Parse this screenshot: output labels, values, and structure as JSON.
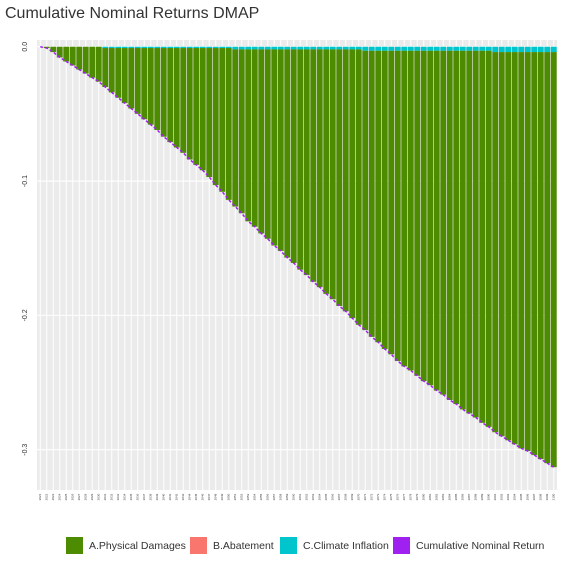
{
  "chart_data": {
    "type": "bar",
    "stacked": true,
    "title": "Cumulative Nominal Returns DMAP",
    "categories": [
      "2021",
      "2022",
      "2023",
      "2024",
      "2025",
      "2026",
      "2027",
      "2028",
      "2029",
      "2030",
      "2031",
      "2032",
      "2033",
      "2034",
      "2035",
      "2036",
      "2037",
      "2038",
      "2039",
      "2040",
      "2041",
      "2042",
      "2043",
      "2044",
      "2045",
      "2046",
      "2047",
      "2048",
      "2049",
      "2050",
      "2051",
      "2052",
      "2053",
      "2054",
      "2055",
      "2056",
      "2057",
      "2058",
      "2059",
      "2060",
      "2061",
      "2062",
      "2063",
      "2064",
      "2065",
      "2066",
      "2067",
      "2068",
      "2069",
      "2070",
      "2071",
      "2072",
      "2073",
      "2074",
      "2075",
      "2076",
      "2077",
      "2078",
      "2079",
      "2080",
      "2081",
      "2082",
      "2083",
      "2084",
      "2085",
      "2086",
      "2087",
      "2088",
      "2089",
      "2090",
      "2091",
      "2092",
      "2093",
      "2094",
      "2095",
      "2096",
      "2097",
      "2098",
      "2099",
      "2100"
    ],
    "series": [
      {
        "name": "A.Physical Damages",
        "color": "#4d8b00",
        "values": [
          0,
          -0.001,
          -0.004,
          -0.008,
          -0.011,
          -0.014,
          -0.017,
          -0.02,
          -0.023,
          -0.026,
          -0.029,
          -0.033,
          -0.037,
          -0.041,
          -0.045,
          -0.049,
          -0.053,
          -0.057,
          -0.061,
          -0.066,
          -0.07,
          -0.074,
          -0.078,
          -0.083,
          -0.087,
          -0.091,
          -0.096,
          -0.102,
          -0.107,
          -0.113,
          -0.117,
          -0.122,
          -0.128,
          -0.132,
          -0.137,
          -0.141,
          -0.146,
          -0.15,
          -0.155,
          -0.159,
          -0.164,
          -0.168,
          -0.173,
          -0.177,
          -0.182,
          -0.186,
          -0.191,
          -0.195,
          -0.2,
          -0.205,
          -0.208,
          -0.213,
          -0.217,
          -0.222,
          -0.226,
          -0.231,
          -0.235,
          -0.238,
          -0.242,
          -0.246,
          -0.249,
          -0.253,
          -0.256,
          -0.26,
          -0.263,
          -0.267,
          -0.27,
          -0.273,
          -0.277,
          -0.28,
          -0.283,
          -0.286,
          -0.289,
          -0.292,
          -0.295,
          -0.297,
          -0.3,
          -0.303,
          -0.306,
          -0.309
        ]
      },
      {
        "name": "B.Abatement",
        "color": "#f8766d",
        "values": [
          0,
          0,
          0,
          0,
          0,
          0,
          0,
          0,
          0,
          0,
          0,
          0,
          0,
          0,
          0,
          0,
          0,
          0,
          0,
          0,
          0,
          0,
          0,
          0,
          0,
          0,
          0,
          0,
          0,
          0,
          0,
          0,
          0,
          0,
          0,
          0,
          0,
          0,
          0,
          0,
          0,
          0,
          0,
          0,
          0,
          0,
          0,
          0,
          0,
          0,
          0,
          0,
          0,
          0,
          0,
          0,
          0,
          0,
          0,
          0,
          0,
          0,
          0,
          0,
          0,
          0,
          0,
          0,
          0,
          0,
          0,
          0,
          0,
          0,
          0,
          0,
          0,
          0,
          0,
          0
        ]
      },
      {
        "name": "C.Climate Inflation",
        "color": "#00c5cd",
        "values": [
          0,
          0,
          0,
          0,
          0,
          0,
          0,
          0,
          0,
          0,
          -0.001,
          -0.001,
          -0.001,
          -0.001,
          -0.001,
          -0.001,
          -0.001,
          -0.001,
          -0.001,
          -0.001,
          -0.001,
          -0.001,
          -0.001,
          -0.001,
          -0.001,
          -0.001,
          -0.001,
          -0.001,
          -0.001,
          -0.001,
          -0.002,
          -0.002,
          -0.002,
          -0.002,
          -0.002,
          -0.002,
          -0.002,
          -0.002,
          -0.002,
          -0.002,
          -0.002,
          -0.002,
          -0.002,
          -0.002,
          -0.002,
          -0.002,
          -0.002,
          -0.002,
          -0.002,
          -0.002,
          -0.003,
          -0.003,
          -0.003,
          -0.003,
          -0.003,
          -0.003,
          -0.003,
          -0.003,
          -0.003,
          -0.003,
          -0.003,
          -0.003,
          -0.003,
          -0.003,
          -0.003,
          -0.003,
          -0.003,
          -0.003,
          -0.003,
          -0.003,
          -0.004,
          -0.004,
          -0.004,
          -0.004,
          -0.004,
          -0.004,
          -0.004,
          -0.004,
          -0.004,
          -0.004
        ]
      },
      {
        "name": "Cumulative Nominal Return",
        "type": "line",
        "color": "#a020f0",
        "values": [
          0,
          -0.001,
          -0.004,
          -0.008,
          -0.011,
          -0.014,
          -0.017,
          -0.02,
          -0.023,
          -0.026,
          -0.03,
          -0.034,
          -0.038,
          -0.042,
          -0.046,
          -0.05,
          -0.054,
          -0.058,
          -0.062,
          -0.067,
          -0.071,
          -0.075,
          -0.079,
          -0.084,
          -0.088,
          -0.092,
          -0.097,
          -0.103,
          -0.108,
          -0.114,
          -0.119,
          -0.124,
          -0.13,
          -0.134,
          -0.139,
          -0.143,
          -0.148,
          -0.152,
          -0.157,
          -0.161,
          -0.166,
          -0.17,
          -0.175,
          -0.179,
          -0.184,
          -0.188,
          -0.193,
          -0.197,
          -0.202,
          -0.207,
          -0.211,
          -0.216,
          -0.22,
          -0.225,
          -0.229,
          -0.234,
          -0.238,
          -0.241,
          -0.245,
          -0.249,
          -0.252,
          -0.256,
          -0.259,
          -0.263,
          -0.266,
          -0.27,
          -0.273,
          -0.276,
          -0.28,
          -0.283,
          -0.287,
          -0.29,
          -0.293,
          -0.296,
          -0.299,
          -0.301,
          -0.304,
          -0.307,
          -0.31,
          -0.313
        ]
      }
    ],
    "ylim": [
      -0.33,
      0.005
    ],
    "yticks": [
      {
        "value": 0,
        "label": "0.0"
      },
      -0.1,
      -0.2,
      -0.3
    ],
    "grid": true,
    "legend": "bottom"
  }
}
